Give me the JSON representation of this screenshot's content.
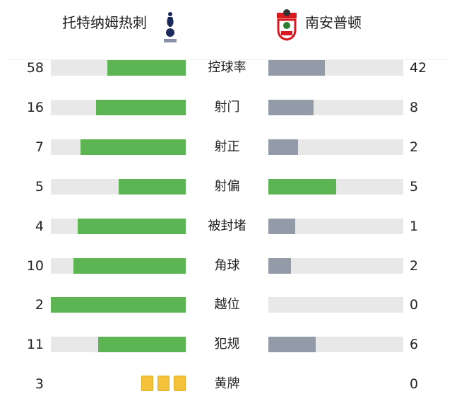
{
  "home": {
    "name": "托特纳姆热刺",
    "logo": "tottenham-crest"
  },
  "away": {
    "name": "南安普顿",
    "logo": "southampton-crest"
  },
  "colors": {
    "leader": "#5cb452",
    "trailer": "#939aa8",
    "track": "#e8e8e8",
    "yellow": "#f5c33b"
  },
  "stats": [
    {
      "label": "控球率",
      "home": 58,
      "away": 42
    },
    {
      "label": "射门",
      "home": 16,
      "away": 8
    },
    {
      "label": "射正",
      "home": 7,
      "away": 2
    },
    {
      "label": "射偏",
      "home": 5,
      "away": 5
    },
    {
      "label": "被封堵",
      "home": 4,
      "away": 1
    },
    {
      "label": "角球",
      "home": 10,
      "away": 2
    },
    {
      "label": "越位",
      "home": 2,
      "away": 0
    },
    {
      "label": "犯规",
      "home": 11,
      "away": 6
    }
  ],
  "yellow": {
    "label": "黄牌",
    "home": 3,
    "away": 0
  }
}
